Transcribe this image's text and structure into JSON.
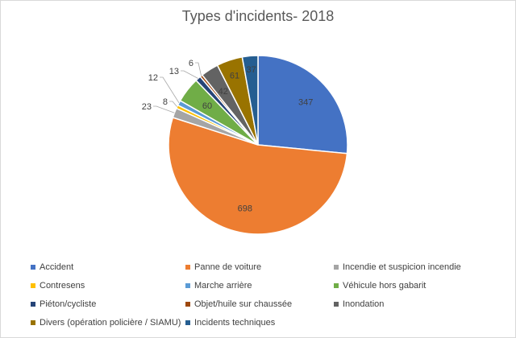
{
  "chart_data": {
    "type": "pie",
    "title": "Types d'incidents- 2018",
    "slices": [
      {
        "label": "Accident",
        "value": 347,
        "color": "#4472C4"
      },
      {
        "label": "Panne de voiture",
        "value": 698,
        "color": "#ED7D31"
      },
      {
        "label": "Incendie et suspicion incendie",
        "value": 23,
        "color": "#A5A5A5"
      },
      {
        "label": "Contresens",
        "value": 8,
        "color": "#FFC000"
      },
      {
        "label": "Marche arrière",
        "value": 12,
        "color": "#5B9BD5"
      },
      {
        "label": "Véhicule hors gabarit",
        "value": 60,
        "color": "#70AD47"
      },
      {
        "label": "Piéton/cycliste",
        "value": 13,
        "color": "#264478"
      },
      {
        "label": "Objet/huile sur chaussée",
        "value": 6,
        "color": "#9E480E"
      },
      {
        "label": "Inondation",
        "value": 42,
        "color": "#636363"
      },
      {
        "label": "Divers (opération policière / SIAMU)",
        "value": 61,
        "color": "#997300"
      },
      {
        "label": "Incidents techniques",
        "value": 37,
        "color": "#255E91"
      }
    ],
    "legend_position": "bottom"
  }
}
